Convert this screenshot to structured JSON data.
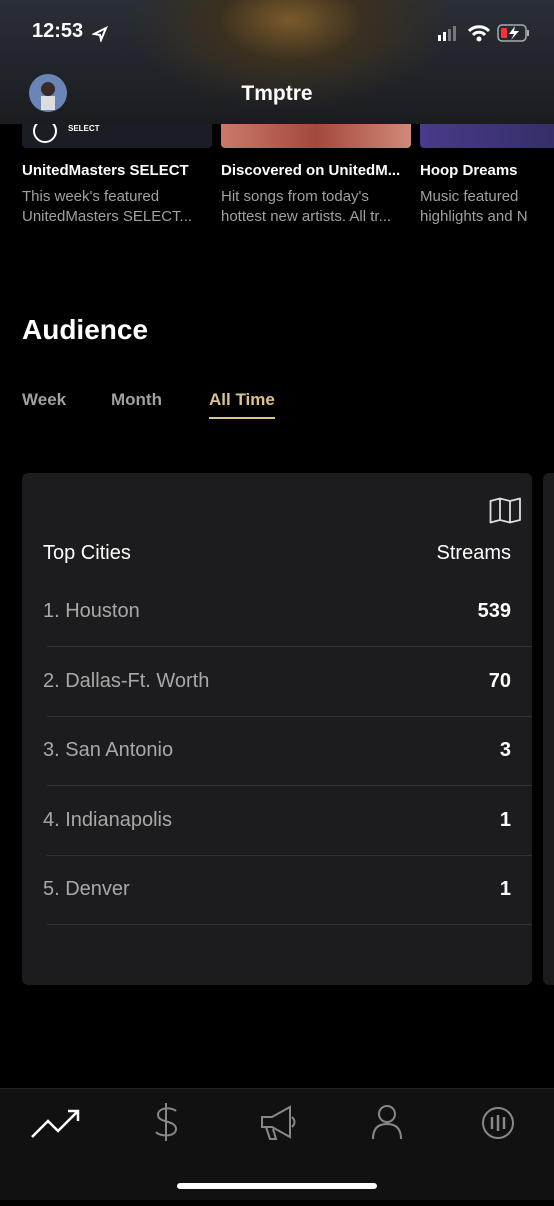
{
  "status_bar": {
    "time": "12:53"
  },
  "header": {
    "title": "Tmptre"
  },
  "playlists": [
    {
      "badge": "SELECT",
      "title": "UnitedMasters SELECT",
      "description": [
        "This week's featured",
        "UnitedMasters SELECT..."
      ]
    },
    {
      "title": "Discovered on UnitedM...",
      "description": [
        "Hit songs from today's",
        "hottest new artists. All tr..."
      ]
    },
    {
      "title": "Hoop Dreams",
      "description": [
        "Music featured",
        "highlights and N"
      ]
    }
  ],
  "audience": {
    "title": "Audience",
    "tabs": [
      "Week",
      "Month",
      "All Time"
    ],
    "active_tab": 2,
    "table": {
      "header": [
        "Top Cities",
        "Streams"
      ],
      "rows": [
        [
          "1. Houston",
          539
        ],
        [
          "2. Dallas-Ft. Worth",
          70
        ],
        [
          "3. San Antonio",
          3
        ],
        [
          "4. Indianapolis",
          1
        ],
        [
          "5. Denver",
          1
        ]
      ]
    }
  }
}
